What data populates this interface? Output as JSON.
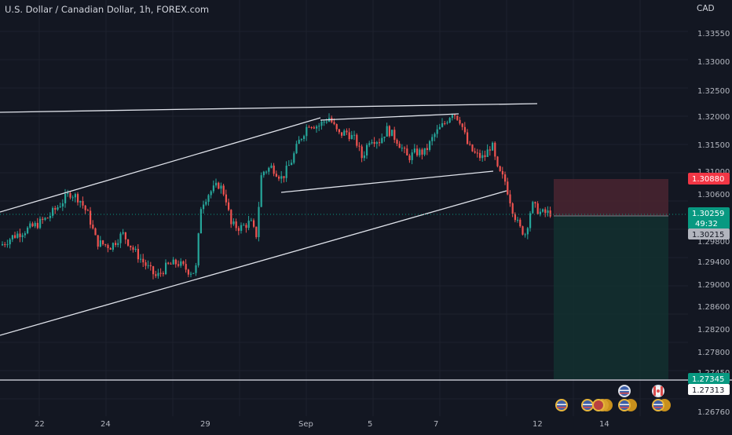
{
  "header": {
    "symbol_title": "U.S. Dollar / Canadian Dollar, 1h, FOREX.com",
    "currency": "CAD"
  },
  "price_axis": {
    "ticks": [
      "1.33550",
      "1.33000",
      "1.32500",
      "1.32000",
      "1.31500",
      "1.31000",
      "1.30600",
      "1.29800",
      "1.29400",
      "1.29000",
      "1.28600",
      "1.28200",
      "1.27800",
      "1.27450",
      "1.26760"
    ]
  },
  "time_axis": {
    "ticks": [
      "22",
      "24",
      "29",
      "Sep",
      "5",
      "7",
      "12",
      "14"
    ]
  },
  "price_labels": {
    "stop_loss": "1.30880",
    "current_price": "1.30259",
    "countdown": "49:32",
    "entry": "1.30215",
    "take_profit": "1.27345",
    "horizontal_level": "1.27313"
  },
  "colors": {
    "background": "#131722",
    "bull_candle": "#26a69a",
    "bear_candle": "#ef5350",
    "stop_zone": "#4a2530",
    "profit_zone": "#13302f",
    "stop_label": "#f23645",
    "price_label": "#089981",
    "entry_label": "#b2b5be",
    "trend_line": "#e0e3eb"
  },
  "chart_data": {
    "type": "candlestick",
    "symbol": "USDCAD",
    "timeframe": "1h",
    "y_range": [
      1.2676,
      1.3392
    ],
    "close_path": [
      [
        0,
        1.297
      ],
      [
        15,
        1.2985
      ],
      [
        30,
        1.2995
      ],
      [
        45,
        1.3005
      ],
      [
        60,
        1.3018
      ],
      [
        75,
        1.304
      ],
      [
        88,
        1.306
      ],
      [
        100,
        1.305
      ],
      [
        112,
        1.302
      ],
      [
        122,
        1.2975
      ],
      [
        140,
        1.2968
      ],
      [
        155,
        1.299
      ],
      [
        170,
        1.296
      ],
      [
        185,
        1.2935
      ],
      [
        198,
        1.2915
      ],
      [
        212,
        1.2935
      ],
      [
        225,
        1.294
      ],
      [
        240,
        1.2925
      ],
      [
        248,
        1.2925
      ],
      [
        255,
        1.304
      ],
      [
        265,
        1.306
      ],
      [
        278,
        1.3075
      ],
      [
        286,
        1.3055
      ],
      [
        293,
        1.3005
      ],
      [
        305,
        1.3
      ],
      [
        318,
        1.301
      ],
      [
        325,
        1.2985
      ],
      [
        332,
        1.3095
      ],
      [
        345,
        1.3105
      ],
      [
        358,
        1.3085
      ],
      [
        370,
        1.3115
      ],
      [
        380,
        1.315
      ],
      [
        392,
        1.318
      ],
      [
        404,
        1.3175
      ],
      [
        418,
        1.319
      ],
      [
        430,
        1.316
      ],
      [
        440,
        1.3165
      ],
      [
        452,
        1.315
      ],
      [
        460,
        1.312
      ],
      [
        470,
        1.3155
      ],
      [
        482,
        1.315
      ],
      [
        492,
        1.317
      ],
      [
        505,
        1.315
      ],
      [
        518,
        1.312
      ],
      [
        528,
        1.313
      ],
      [
        540,
        1.313
      ],
      [
        552,
        1.316
      ],
      [
        565,
        1.318
      ],
      [
        575,
        1.32
      ],
      [
        585,
        1.3185
      ],
      [
        595,
        1.314
      ],
      [
        605,
        1.3125
      ],
      [
        615,
        1.312
      ],
      [
        625,
        1.3145
      ],
      [
        632,
        1.31
      ],
      [
        642,
        1.308
      ],
      [
        652,
        1.303
      ],
      [
        660,
        1.3
      ],
      [
        668,
        1.299
      ],
      [
        676,
        1.304
      ],
      [
        688,
        1.3025
      ],
      [
        700,
        1.3026
      ]
    ]
  },
  "drawings": {
    "position_tool": "short",
    "trend_lines": 5
  }
}
